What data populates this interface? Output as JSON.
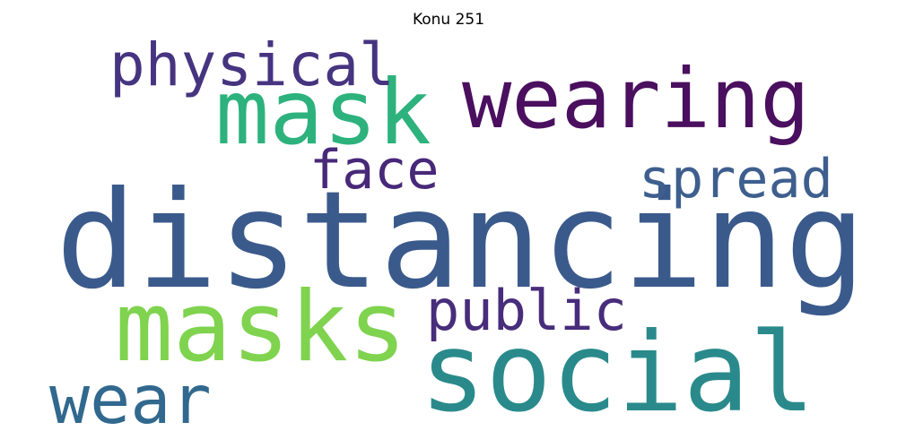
{
  "title": "Konu 251",
  "words": [
    {
      "text": "distancing",
      "weight": 1.0,
      "color": "#3b5a8c"
    },
    {
      "text": "social",
      "weight": 0.82,
      "color": "#2a8a8b"
    },
    {
      "text": "masks",
      "weight": 0.72,
      "color": "#7fd34e"
    },
    {
      "text": "mask",
      "weight": 0.66,
      "color": "#2db27d"
    },
    {
      "text": "wearing",
      "weight": 0.62,
      "color": "#4a0f5e"
    },
    {
      "text": "wear",
      "weight": 0.5,
      "color": "#31688e"
    },
    {
      "text": "physical",
      "weight": 0.44,
      "color": "#463480"
    },
    {
      "text": "public",
      "weight": 0.42,
      "color": "#472d7b"
    },
    {
      "text": "spread",
      "weight": 0.4,
      "color": "#3e5f8e"
    },
    {
      "text": "face",
      "weight": 0.4,
      "color": "#482878"
    }
  ]
}
